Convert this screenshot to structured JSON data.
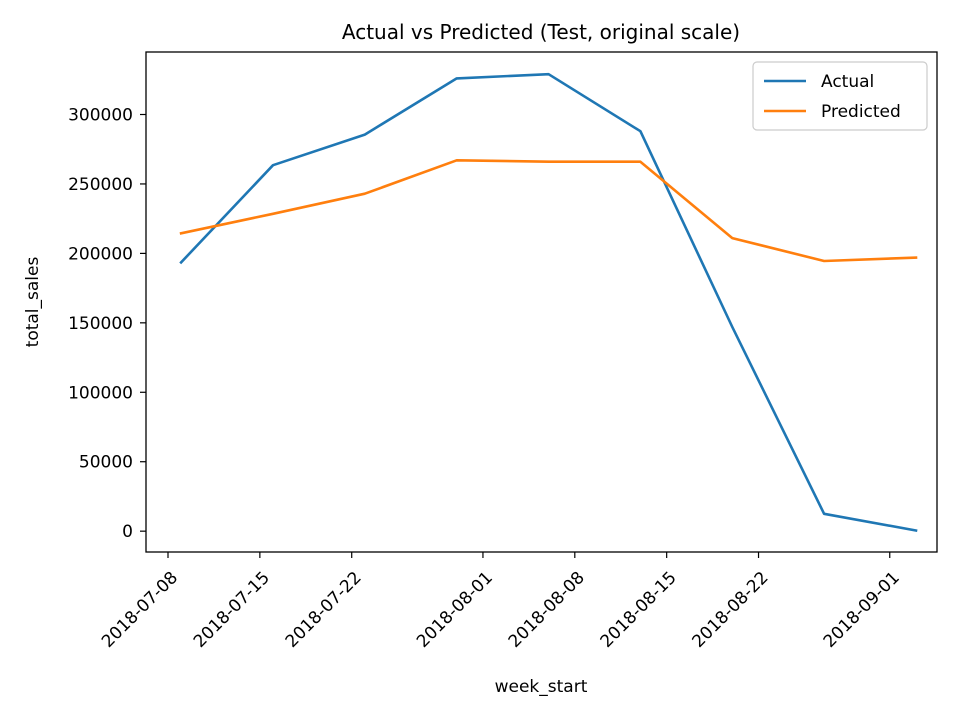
{
  "chart_data": {
    "type": "line",
    "title": "Actual vs Predicted (Test, original scale)",
    "xlabel": "week_start",
    "ylabel": "total_sales",
    "xlim": [
      "2018-07-08",
      "2018-09-03"
    ],
    "ylim": [
      -15000,
      345000
    ],
    "x_ticks": [
      "2018-07-08",
      "2018-07-15",
      "2018-07-22",
      "2018-08-01",
      "2018-08-08",
      "2018-08-15",
      "2018-08-22",
      "2018-09-01"
    ],
    "y_ticks": [
      0,
      50000,
      100000,
      150000,
      200000,
      250000,
      300000
    ],
    "x": [
      "2018-07-09",
      "2018-07-16",
      "2018-07-23",
      "2018-07-30",
      "2018-08-06",
      "2018-08-13",
      "2018-08-20",
      "2018-08-27",
      "2018-09-03"
    ],
    "series": [
      {
        "name": "Actual",
        "color": "#1f77b4",
        "values": [
          193500,
          263500,
          285500,
          326000,
          329000,
          288000,
          147000,
          12500,
          500
        ]
      },
      {
        "name": "Predicted",
        "color": "#ff7f0e",
        "values": [
          214500,
          228500,
          243000,
          267000,
          266000,
          266000,
          211000,
          194500,
          197000
        ]
      }
    ],
    "legend_position": "top-right",
    "grid": false
  }
}
